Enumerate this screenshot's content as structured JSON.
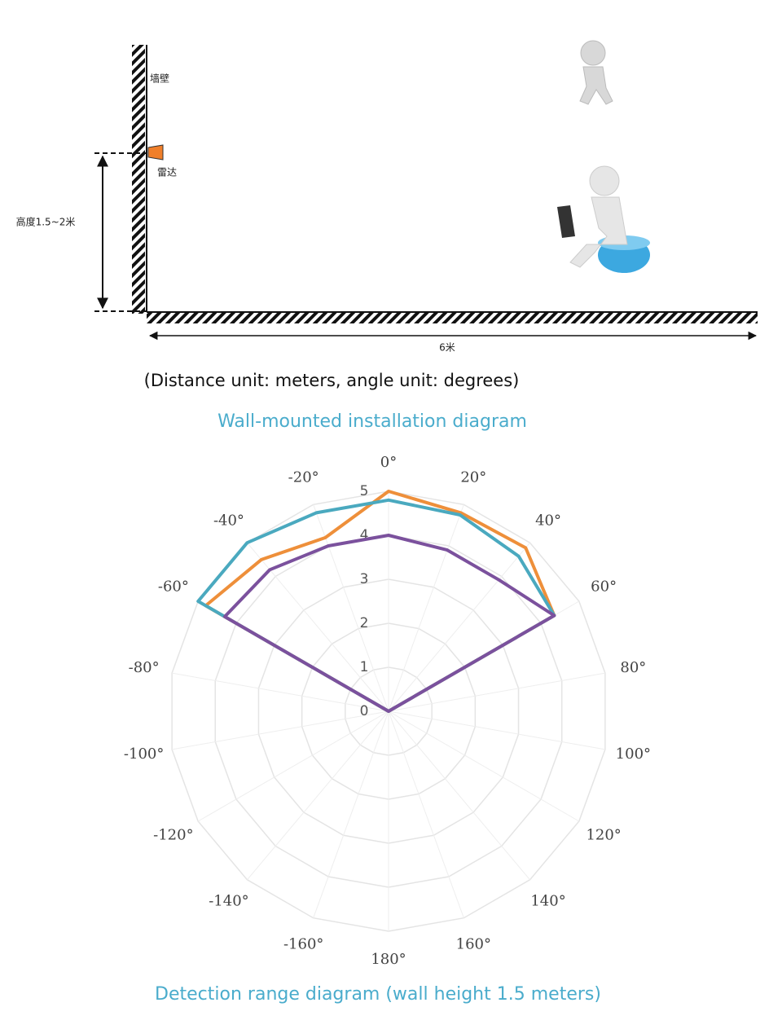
{
  "diagram": {
    "wall_label": "墙壁",
    "radar_label": "雷达",
    "height_label": "高度1.5~2米",
    "distance_label": "6米",
    "caption": "(Distance unit: meters, angle unit: degrees)",
    "title": "Wall-mounted installation diagram"
  },
  "chart_data": {
    "type": "radar",
    "title": "Detection range diagram (wall height 1.5 meters)",
    "categories": [
      "0°",
      "20°",
      "40°",
      "60°",
      "80°",
      "100°",
      "120°",
      "140°",
      "160°",
      "180°",
      "-160°",
      "-140°",
      "-120°",
      "-100°",
      "-80°",
      "-60°",
      "-40°",
      "-20°"
    ],
    "series": [
      {
        "color": "#ee8f3a",
        "values": [
          5.0,
          4.8,
          4.85,
          4.35,
          0,
          0,
          0,
          0,
          0,
          0,
          0,
          0,
          0,
          0,
          0,
          4.8,
          4.5,
          4.2
        ]
      },
      {
        "color": "#4aa9bf",
        "values": [
          4.8,
          4.75,
          4.6,
          4.35,
          0,
          0,
          0,
          0,
          0,
          0,
          0,
          0,
          0,
          0,
          0,
          5.0,
          5.0,
          4.8
        ]
      },
      {
        "color": "#7b519d",
        "values": [
          4.0,
          3.9,
          3.9,
          4.35,
          0,
          0,
          0,
          0,
          0,
          0,
          0,
          0,
          0,
          0,
          0,
          4.3,
          4.2,
          4.0
        ]
      }
    ],
    "ylim": [
      0,
      5
    ],
    "yticks": [
      0,
      1,
      2,
      3,
      4,
      5
    ],
    "grid": true
  }
}
